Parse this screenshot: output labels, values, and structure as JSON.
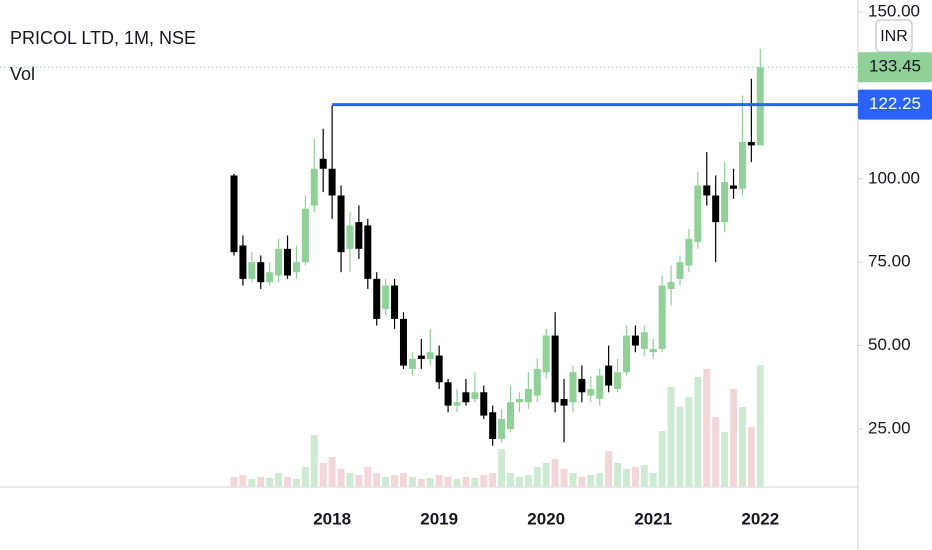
{
  "chart_data": {
    "type": "candlestick",
    "title": "PRICOL LTD, 1M, NSE",
    "volume_label": "Vol",
    "currency": "INR",
    "categories": [
      null,
      null,
      null,
      null,
      null,
      null,
      null,
      null,
      null,
      null,
      null,
      "2018",
      null,
      null,
      null,
      null,
      null,
      null,
      null,
      null,
      null,
      null,
      null,
      "2019",
      null,
      null,
      null,
      null,
      null,
      null,
      null,
      null,
      null,
      null,
      null,
      "2020",
      null,
      null,
      null,
      null,
      null,
      null,
      null,
      null,
      null,
      null,
      null,
      "2021",
      null,
      null,
      null,
      null,
      null,
      null,
      null,
      null,
      null,
      null,
      null,
      "2022"
    ],
    "open": [
      101,
      80,
      70,
      75,
      69,
      71,
      79,
      72,
      75,
      92,
      106,
      103,
      95,
      79,
      87,
      86,
      70,
      61,
      68,
      58,
      43,
      47,
      46,
      47,
      39,
      32,
      36,
      34,
      36,
      30,
      22,
      25,
      33,
      33,
      35,
      42,
      53,
      34,
      33,
      40,
      35,
      34,
      44,
      37,
      42,
      53,
      49,
      48,
      49,
      67,
      70,
      74,
      81,
      98,
      95,
      87,
      98,
      97,
      111,
      110
    ],
    "high": [
      101.5,
      83,
      78,
      77,
      75,
      82,
      83,
      80,
      95,
      112,
      115,
      122,
      98,
      90,
      92,
      88,
      72,
      70,
      70,
      60,
      48,
      52,
      55,
      50,
      40,
      37,
      40,
      42,
      38,
      32,
      31,
      38,
      36,
      42,
      46,
      55,
      60,
      40,
      44,
      44,
      41,
      43,
      50,
      46,
      56,
      56,
      56,
      52,
      71,
      74,
      77,
      85,
      102,
      108,
      101,
      105,
      103,
      125,
      130,
      139
    ],
    "low": [
      77,
      68,
      69,
      67,
      68,
      69,
      70,
      70,
      74,
      90,
      96,
      88,
      72,
      72,
      76,
      67,
      56,
      59,
      55,
      43,
      41,
      43,
      44,
      37,
      30,
      30,
      32,
      33,
      28,
      20,
      21,
      24,
      30,
      31,
      33,
      40,
      30,
      21,
      30,
      33,
      33,
      32,
      36,
      36,
      41,
      48,
      47,
      46,
      48,
      62,
      68,
      72,
      79,
      92,
      75,
      84,
      94,
      95,
      105,
      110
    ],
    "close": [
      78,
      70,
      75,
      69,
      72,
      79,
      71,
      75,
      91,
      103,
      103,
      95,
      78,
      86,
      79,
      70,
      58,
      68,
      58,
      44,
      46,
      46,
      48,
      39,
      32,
      33,
      33,
      36,
      29,
      22,
      28,
      33,
      34,
      37,
      43,
      53,
      33,
      32,
      42,
      36,
      37,
      41,
      38,
      42,
      53,
      50,
      54,
      49,
      68,
      69,
      75,
      82,
      98,
      95,
      87,
      99,
      97,
      111,
      110,
      133.45
    ],
    "volume": [
      10,
      12,
      8,
      10,
      9,
      14,
      10,
      8,
      20,
      52,
      24,
      30,
      18,
      14,
      12,
      20,
      14,
      10,
      12,
      14,
      10,
      8,
      9,
      12,
      10,
      8,
      10,
      9,
      12,
      14,
      38,
      14,
      10,
      12,
      20,
      24,
      28,
      18,
      14,
      10,
      12,
      14,
      36,
      24,
      18,
      20,
      22,
      14,
      56,
      100,
      80,
      90,
      110,
      118,
      70,
      55,
      98,
      80,
      60,
      122
    ],
    "up_color": "#8fd197",
    "down_color": "#000000",
    "volume_up_color": "#cdebd2",
    "volume_down_color": "#f3d6d8",
    "ylim": [
      7.6,
      153.6
    ],
    "yticks": [
      {
        "value": 25,
        "label": "25.00"
      },
      {
        "value": 50,
        "label": "50.00"
      },
      {
        "value": 75,
        "label": "75.00"
      },
      {
        "value": 100,
        "label": "100.00"
      },
      {
        "value": 150,
        "label": "150.00"
      }
    ],
    "last_price": {
      "value": 133.45,
      "label": "133.45",
      "color": "#8fd197"
    },
    "horizontal_line": {
      "value": 122.25,
      "label": "122.25",
      "color": "#2962ff",
      "start_category": "2018"
    }
  }
}
